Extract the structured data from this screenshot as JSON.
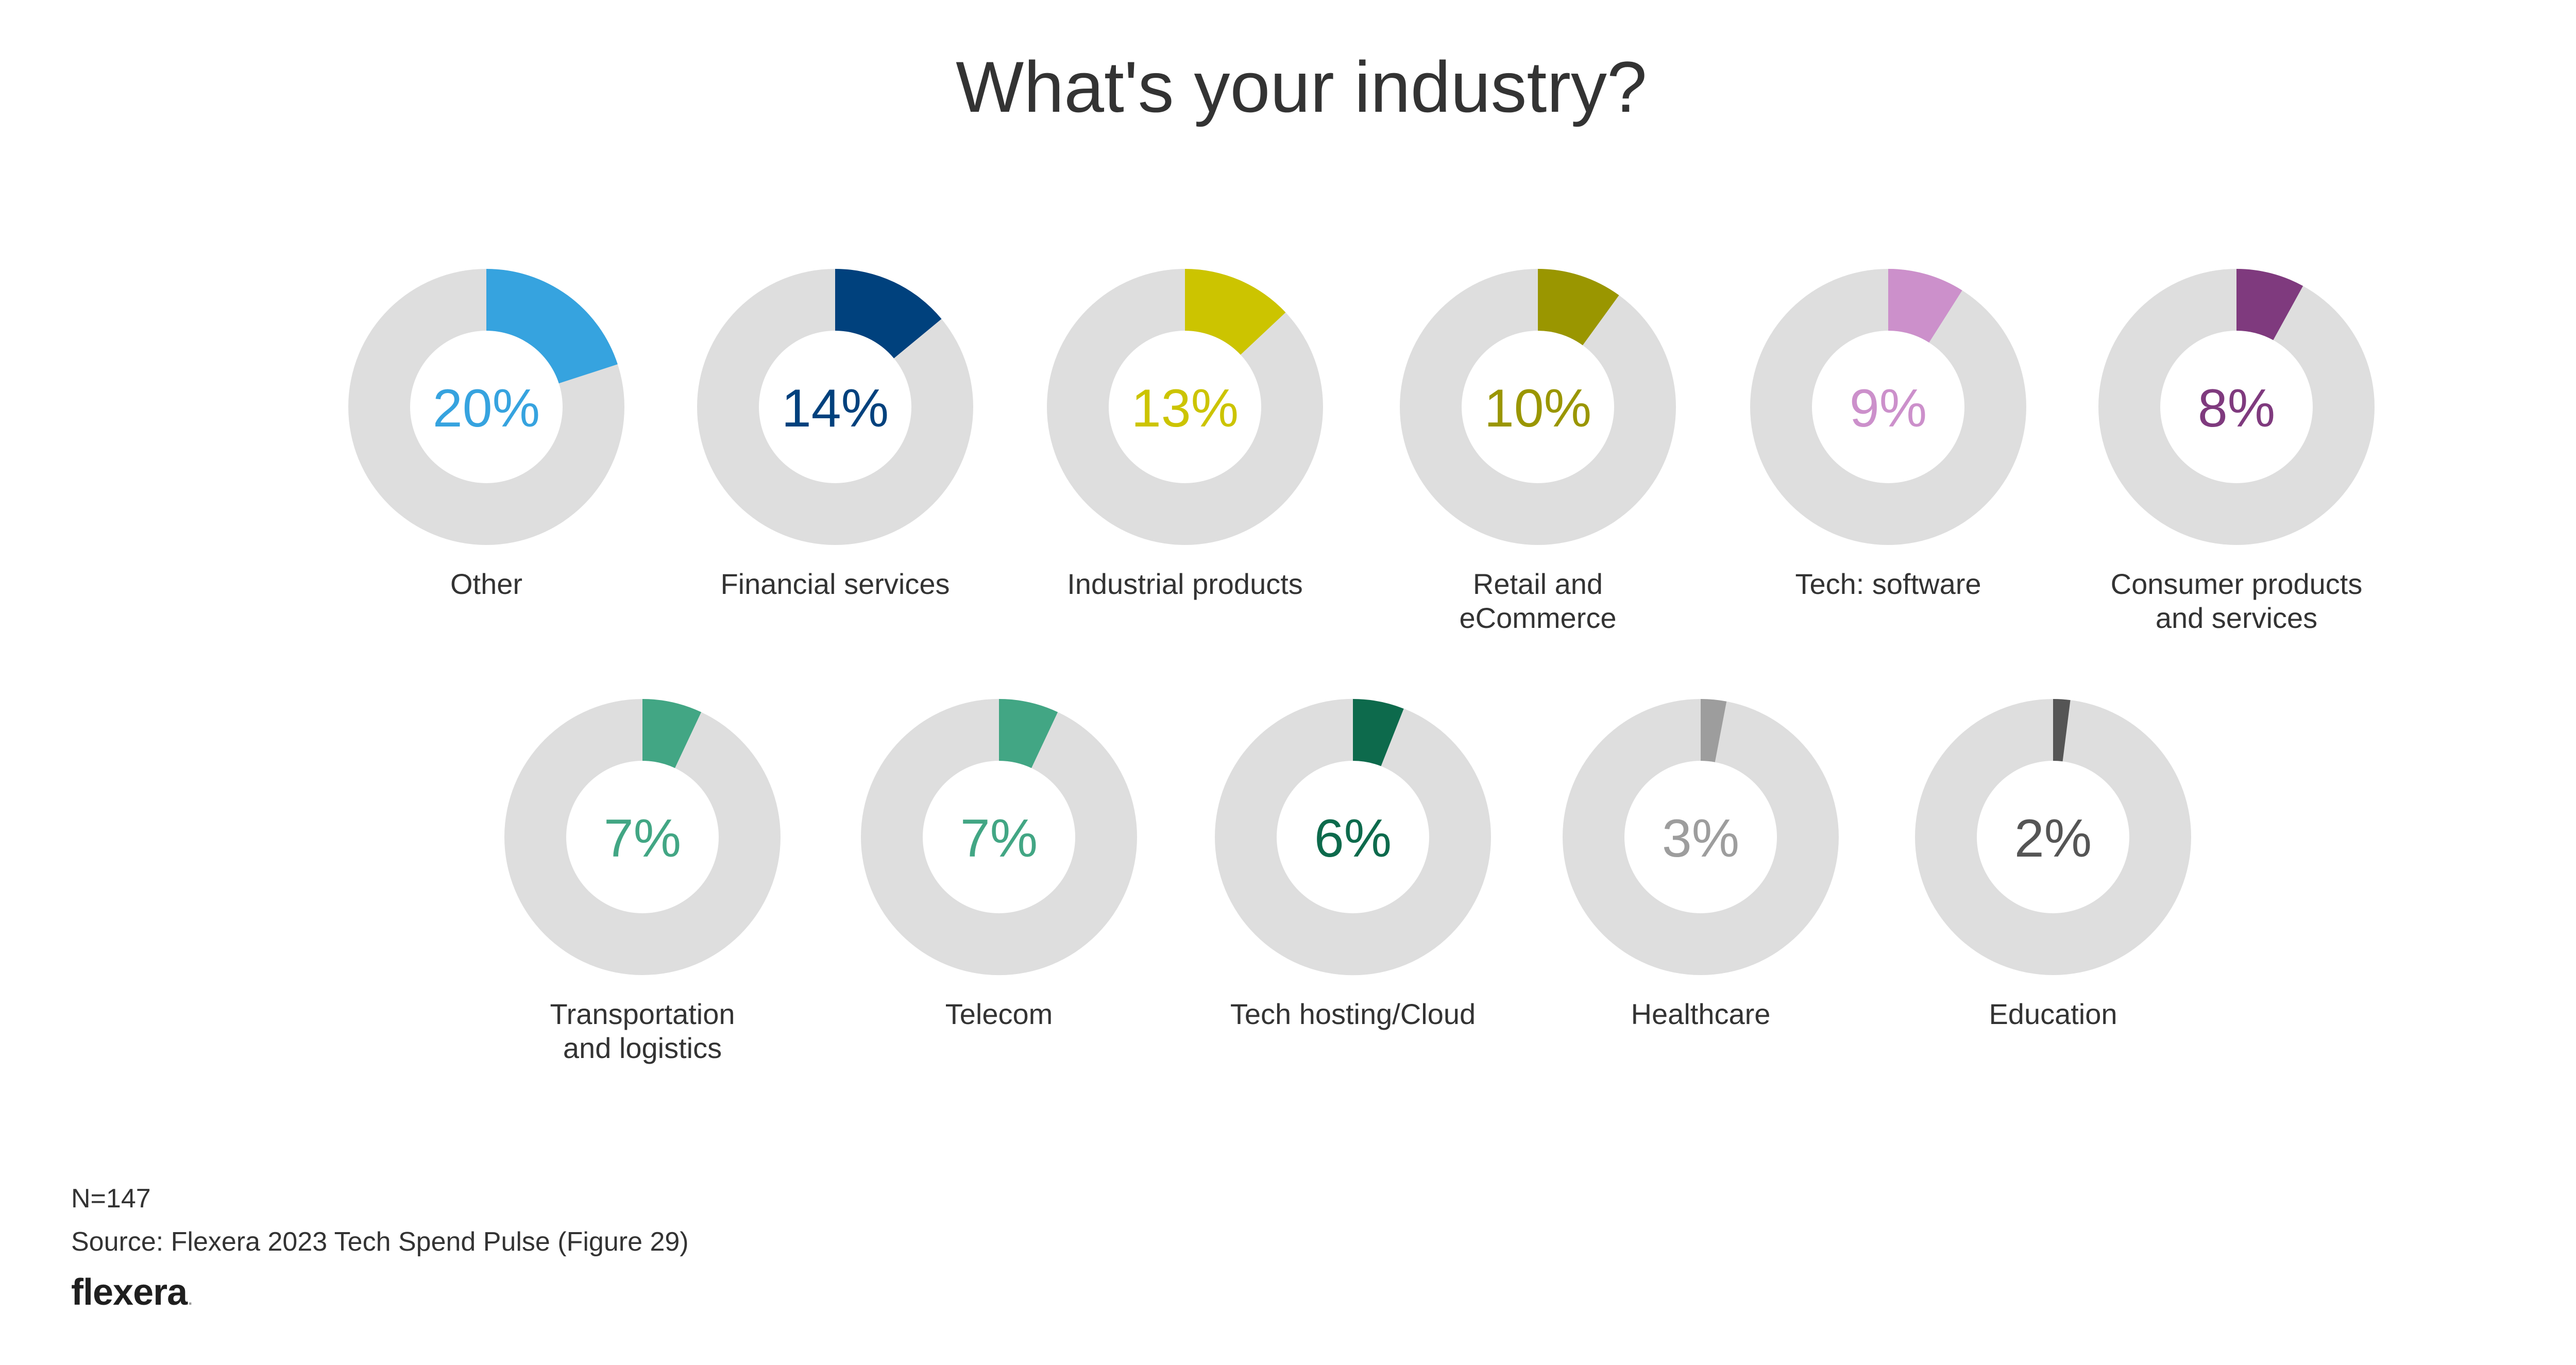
{
  "footer": {
    "n_label": "N=147",
    "source": "Source: Flexera 2023 Tech Spend Pulse (Figure 29)",
    "logo_text": "flexera",
    "logo_dot": "."
  },
  "chart_data": {
    "type": "donut",
    "title": "What's your industry?",
    "track_color": "#dedede",
    "categories": [
      {
        "name": "Other",
        "label_lines": [
          "Other"
        ],
        "value": 20,
        "display": "20%",
        "color": "#36a3df",
        "text_color": "#36a3df"
      },
      {
        "name": "Financial services",
        "label_lines": [
          "Financial services"
        ],
        "value": 14,
        "display": "14%",
        "color": "#00417d",
        "text_color": "#00417d"
      },
      {
        "name": "Industrial products",
        "label_lines": [
          "Industrial products"
        ],
        "value": 13,
        "display": "13%",
        "color": "#ccc400",
        "text_color": "#ccc400"
      },
      {
        "name": "Retail and eCommerce",
        "label_lines": [
          "Retail and",
          "eCommerce"
        ],
        "value": 10,
        "display": "10%",
        "color": "#9a9600",
        "text_color": "#9a9600"
      },
      {
        "name": "Tech: software",
        "label_lines": [
          "Tech: software"
        ],
        "value": 9,
        "display": "9%",
        "color": "#cc90cb",
        "text_color": "#cc90cb"
      },
      {
        "name": "Consumer products and services",
        "label_lines": [
          "Consumer products",
          "and services"
        ],
        "value": 8,
        "display": "8%",
        "color": "#7f3a7e",
        "text_color": "#7f3a7e"
      },
      {
        "name": "Transportation and logistics",
        "label_lines": [
          "Transportation",
          "and logistics"
        ],
        "value": 7,
        "display": "7%",
        "color": "#42a684",
        "text_color": "#42a684"
      },
      {
        "name": "Telecom",
        "label_lines": [
          "Telecom"
        ],
        "value": 7,
        "display": "7%",
        "color": "#42a684",
        "text_color": "#42a684"
      },
      {
        "name": "Tech hosting/Cloud",
        "label_lines": [
          "Tech hosting/Cloud"
        ],
        "value": 6,
        "display": "6%",
        "color": "#0d6a4c",
        "text_color": "#0d6a4c"
      },
      {
        "name": "Healthcare",
        "label_lines": [
          "Healthcare"
        ],
        "value": 3,
        "display": "3%",
        "color": "#9d9d9d",
        "text_color": "#9d9d9d"
      },
      {
        "name": "Education",
        "label_lines": [
          "Education"
        ],
        "value": 2,
        "display": "2%",
        "color": "#555555",
        "text_color": "#555555"
      }
    ]
  }
}
